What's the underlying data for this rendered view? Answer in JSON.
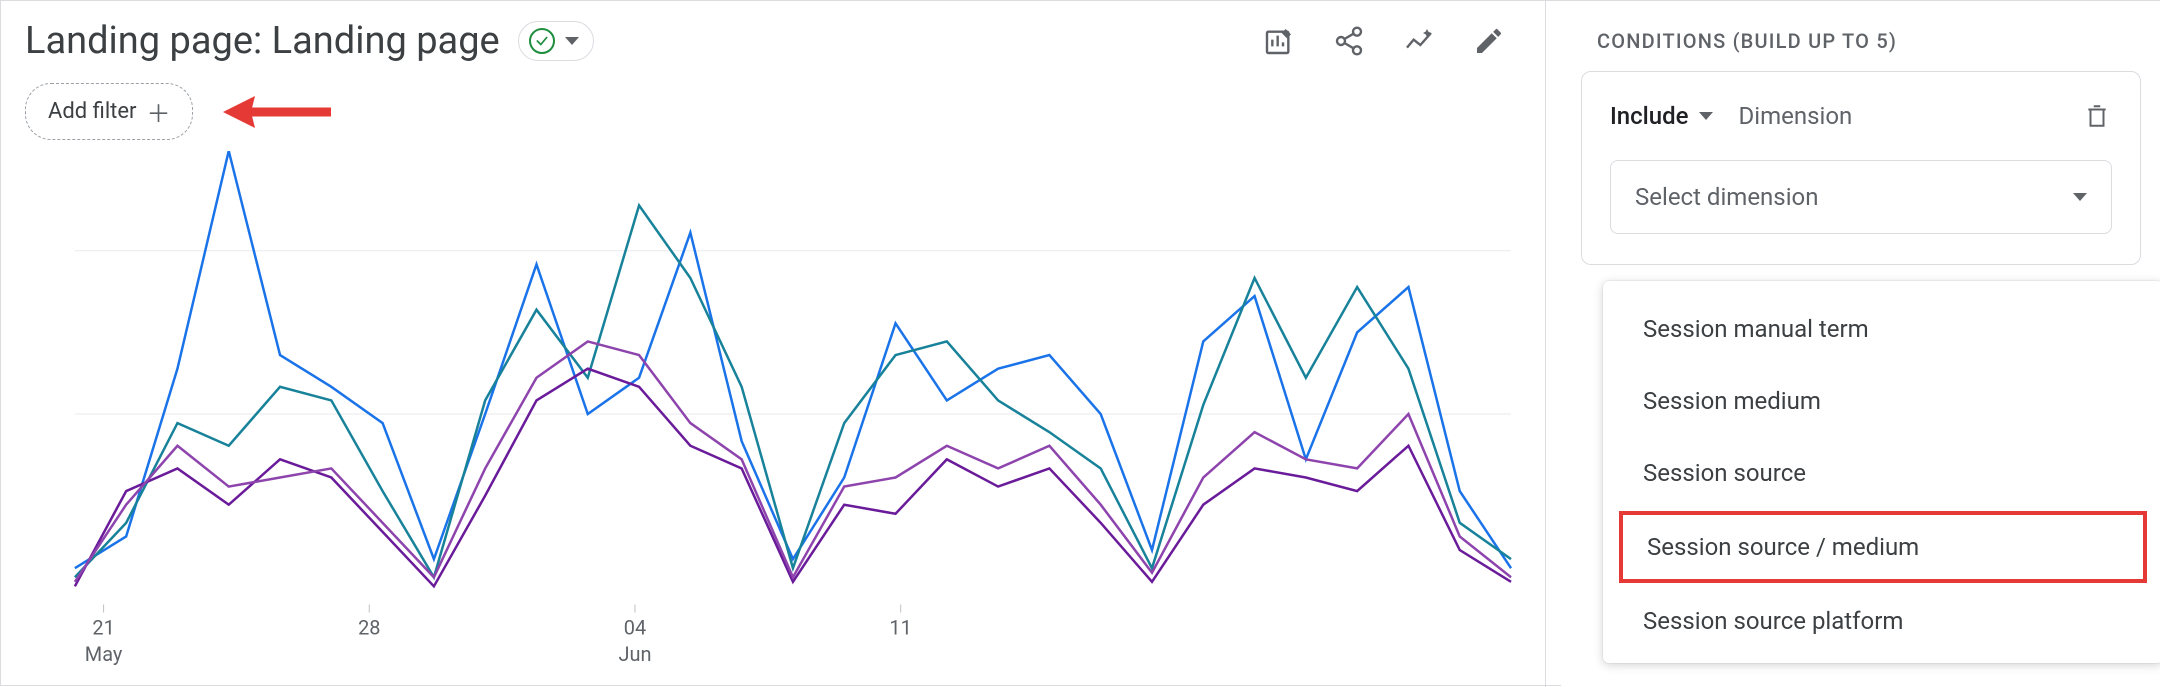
{
  "header": {
    "title": "Landing page: Landing page"
  },
  "filter": {
    "add_label": "Add filter"
  },
  "chart": {
    "grid_color": "#e8eaed",
    "xticks": [
      {
        "pos": 0.02,
        "label": "21",
        "month": "May"
      },
      {
        "pos": 0.205,
        "label": "28"
      },
      {
        "pos": 0.39,
        "label": "04",
        "month": "Jun"
      },
      {
        "pos": 0.575,
        "label": "11"
      }
    ],
    "gridlines_y": [
      0.22,
      0.58
    ],
    "x_n": 28,
    "ymax": 100,
    "series": [
      {
        "color": "#1a73e8",
        "values": [
          8,
          15,
          52,
          100,
          55,
          48,
          40,
          10,
          42,
          75,
          42,
          50,
          82,
          36,
          10,
          28,
          62,
          45,
          52,
          55,
          42,
          12,
          58,
          68,
          32,
          60,
          70,
          25,
          8
        ]
      },
      {
        "color": "#178299",
        "values": [
          6,
          18,
          40,
          35,
          48,
          45,
          25,
          6,
          45,
          65,
          50,
          88,
          72,
          48,
          8,
          40,
          55,
          58,
          45,
          38,
          30,
          8,
          44,
          72,
          50,
          70,
          52,
          18,
          10
        ]
      },
      {
        "color": "#6a1b9a",
        "values": [
          4,
          25,
          30,
          22,
          32,
          28,
          16,
          4,
          24,
          45,
          52,
          48,
          35,
          30,
          5,
          22,
          20,
          32,
          26,
          30,
          18,
          5,
          22,
          30,
          28,
          25,
          35,
          12,
          5
        ]
      },
      {
        "color": "#8e44ad",
        "values": [
          5,
          22,
          35,
          26,
          28,
          30,
          18,
          6,
          30,
          50,
          58,
          55,
          40,
          32,
          6,
          26,
          28,
          35,
          30,
          35,
          22,
          7,
          28,
          38,
          32,
          30,
          42,
          15,
          6
        ]
      }
    ]
  },
  "panel": {
    "header": "CONDITIONS (BUILD UP TO 5)",
    "include_label": "Include",
    "dimension_label": "Dimension",
    "select_placeholder": "Select dimension",
    "options": [
      {
        "label": "Session manual term"
      },
      {
        "label": "Session medium"
      },
      {
        "label": "Session source"
      },
      {
        "label": "Session source / medium",
        "highlight": true
      },
      {
        "label": "Session source platform"
      }
    ]
  },
  "annotation": {
    "arrow_color": "#e53935"
  }
}
